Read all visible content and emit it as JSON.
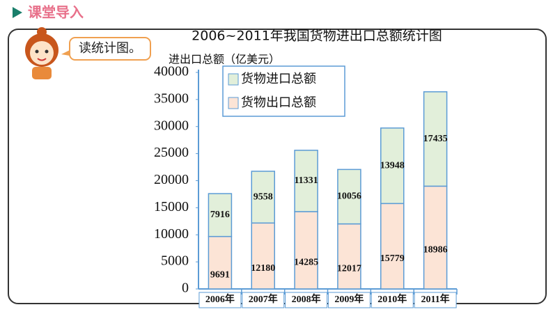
{
  "header": {
    "title": "课堂导入"
  },
  "bubble": {
    "text": "读统计图。"
  },
  "chart_data": {
    "type": "stacked-bar",
    "title": "2006~2011年我国货物进出口总额统计图",
    "y_label": "进出口总额（亿美元）",
    "categories": [
      "2006年",
      "2007年",
      "2008年",
      "2009年",
      "2010年",
      "2011年"
    ],
    "series": [
      {
        "name": "货物进口总额",
        "color": "#e2efda",
        "values": [
          7916,
          9558,
          11331,
          10056,
          13948,
          17435
        ]
      },
      {
        "name": "货物出口总额",
        "color": "#fce4d6",
        "values": [
          9691,
          12180,
          14285,
          12017,
          15779,
          18986
        ]
      }
    ],
    "ylim": [
      0,
      40000
    ],
    "yticks": [
      0,
      5000,
      10000,
      15000,
      20000,
      25000,
      30000,
      35000,
      40000
    ],
    "bar_border": "#5b9bd5"
  }
}
